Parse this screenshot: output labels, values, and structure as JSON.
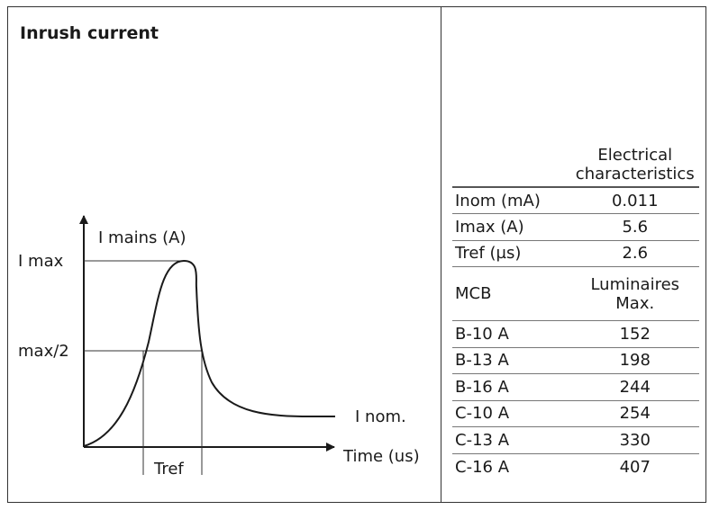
{
  "title": "Inrush current",
  "diagram": {
    "y_axis_label": "I mains (A)",
    "x_axis_label": "Time (us)",
    "label_imax": "I max",
    "label_half": "max/2",
    "label_inom": "I nom.",
    "label_tref": "Tref"
  },
  "table": {
    "header": "Electrical characteristics",
    "rows": [
      {
        "key": "Inom (mA)",
        "value": "0.011"
      },
      {
        "key": "Imax (A)",
        "value": "5.6"
      },
      {
        "key": "Tref (µs)",
        "value": "2.6"
      },
      {
        "key": "MCB",
        "value": "Luminaires Max."
      },
      {
        "key": "B-10 A",
        "value": "152"
      },
      {
        "key": "B-13 A",
        "value": "198"
      },
      {
        "key": "B-16 A",
        "value": "244"
      },
      {
        "key": "C-10 A",
        "value": "254"
      },
      {
        "key": "C-13 A",
        "value": "330"
      },
      {
        "key": "C-16 A",
        "value": "407"
      }
    ]
  }
}
